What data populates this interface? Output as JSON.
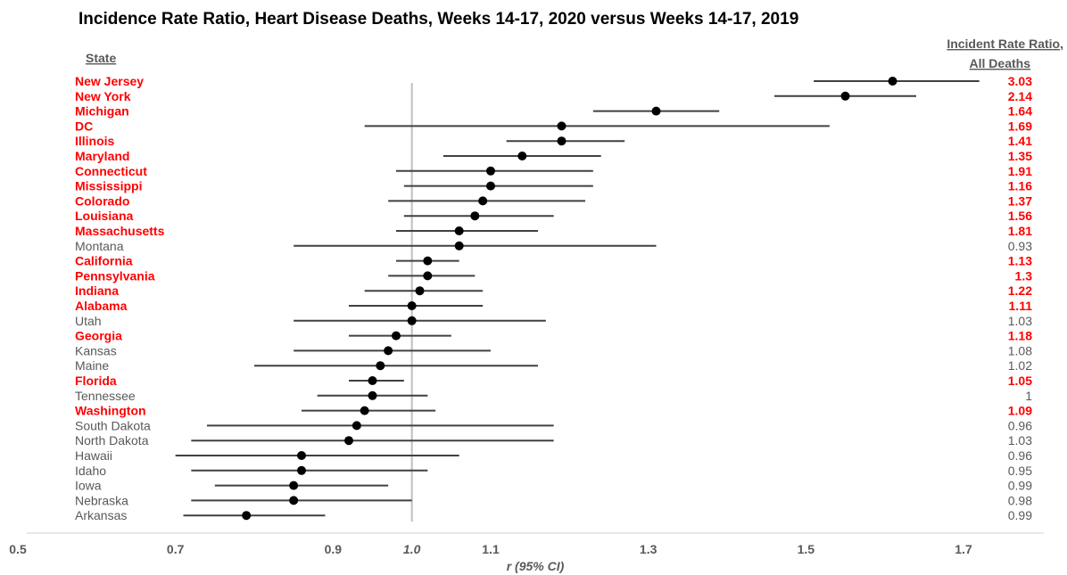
{
  "chart_data": {
    "type": "forest",
    "title": "Incidence Rate Ratio, Heart Disease Deaths, Weeks 14-17, 2020 versus Weeks 14-17, 2019",
    "left_header": "State",
    "right_header_line1": "Incident Rate Ratio,",
    "right_header_line2": "All Deaths",
    "xlabel": "r (95% CI)",
    "xlim": [
      0.5,
      1.8
    ],
    "xticks": [
      "0.5",
      "0.7",
      "0.9",
      "1.0",
      "1.1",
      "1.3",
      "1.5",
      "1.7"
    ],
    "reference_line": 1.0,
    "colors": {
      "significant": "#ff0000",
      "normal": "#595959",
      "ci": "#404040",
      "point": "#000000",
      "ref": "#bfbfbf",
      "axis": "#d0d0d0"
    },
    "rows": [
      {
        "state": "New Jersey",
        "estimate": 1.61,
        "lower": 1.51,
        "upper": 1.72,
        "irr_all": "3.03",
        "significant": true
      },
      {
        "state": "New York",
        "estimate": 1.55,
        "lower": 1.46,
        "upper": 1.64,
        "irr_all": "2.14",
        "significant": true
      },
      {
        "state": "Michigan",
        "estimate": 1.31,
        "lower": 1.23,
        "upper": 1.39,
        "irr_all": "1.64",
        "significant": true
      },
      {
        "state": "DC",
        "estimate": 1.19,
        "lower": 0.94,
        "upper": 1.53,
        "irr_all": "1.69",
        "significant": true
      },
      {
        "state": "Illinois",
        "estimate": 1.19,
        "lower": 1.12,
        "upper": 1.27,
        "irr_all": "1.41",
        "significant": true
      },
      {
        "state": "Maryland",
        "estimate": 1.14,
        "lower": 1.04,
        "upper": 1.24,
        "irr_all": "1.35",
        "significant": true
      },
      {
        "state": "Connecticut",
        "estimate": 1.1,
        "lower": 0.98,
        "upper": 1.23,
        "irr_all": "1.91",
        "significant": true
      },
      {
        "state": "Mississippi",
        "estimate": 1.1,
        "lower": 0.99,
        "upper": 1.23,
        "irr_all": "1.16",
        "significant": true
      },
      {
        "state": "Colorado",
        "estimate": 1.09,
        "lower": 0.97,
        "upper": 1.22,
        "irr_all": "1.37",
        "significant": true
      },
      {
        "state": "Louisiana",
        "estimate": 1.08,
        "lower": 0.99,
        "upper": 1.18,
        "irr_all": "1.56",
        "significant": true
      },
      {
        "state": "Massachusetts",
        "estimate": 1.06,
        "lower": 0.98,
        "upper": 1.16,
        "irr_all": "1.81",
        "significant": true
      },
      {
        "state": "Montana",
        "estimate": 1.06,
        "lower": 0.85,
        "upper": 1.31,
        "irr_all": "0.93",
        "significant": false
      },
      {
        "state": "California",
        "estimate": 1.02,
        "lower": 0.98,
        "upper": 1.06,
        "irr_all": "1.13",
        "significant": true
      },
      {
        "state": "Pennsylvania",
        "estimate": 1.02,
        "lower": 0.97,
        "upper": 1.08,
        "irr_all": "1.3",
        "significant": true
      },
      {
        "state": "Indiana",
        "estimate": 1.01,
        "lower": 0.94,
        "upper": 1.09,
        "irr_all": "1.22",
        "significant": true
      },
      {
        "state": "Alabama",
        "estimate": 1.0,
        "lower": 0.92,
        "upper": 1.09,
        "irr_all": "1.11",
        "significant": true
      },
      {
        "state": "Utah",
        "estimate": 1.0,
        "lower": 0.85,
        "upper": 1.17,
        "irr_all": "1.03",
        "significant": false
      },
      {
        "state": "Georgia",
        "estimate": 0.98,
        "lower": 0.92,
        "upper": 1.05,
        "irr_all": "1.18",
        "significant": true
      },
      {
        "state": "Kansas",
        "estimate": 0.97,
        "lower": 0.85,
        "upper": 1.1,
        "irr_all": "1.08",
        "significant": false
      },
      {
        "state": "Maine",
        "estimate": 0.96,
        "lower": 0.8,
        "upper": 1.16,
        "irr_all": "1.02",
        "significant": false
      },
      {
        "state": "Florida",
        "estimate": 0.95,
        "lower": 0.92,
        "upper": 0.99,
        "irr_all": "1.05",
        "significant": true
      },
      {
        "state": "Tennessee",
        "estimate": 0.95,
        "lower": 0.88,
        "upper": 1.02,
        "irr_all": "1",
        "significant": false
      },
      {
        "state": "Washington",
        "estimate": 0.94,
        "lower": 0.86,
        "upper": 1.03,
        "irr_all": "1.09",
        "significant": true
      },
      {
        "state": "South Dakota",
        "estimate": 0.93,
        "lower": 0.74,
        "upper": 1.18,
        "irr_all": "0.96",
        "significant": false
      },
      {
        "state": "North Dakota",
        "estimate": 0.92,
        "lower": 0.72,
        "upper": 1.18,
        "irr_all": "1.03",
        "significant": false
      },
      {
        "state": "Hawaii",
        "estimate": 0.86,
        "lower": 0.7,
        "upper": 1.06,
        "irr_all": "0.96",
        "significant": false
      },
      {
        "state": "Idaho",
        "estimate": 0.86,
        "lower": 0.72,
        "upper": 1.02,
        "irr_all": "0.95",
        "significant": false
      },
      {
        "state": "Iowa",
        "estimate": 0.85,
        "lower": 0.75,
        "upper": 0.97,
        "irr_all": "0.99",
        "significant": false
      },
      {
        "state": "Nebraska",
        "estimate": 0.85,
        "lower": 0.72,
        "upper": 1.0,
        "irr_all": "0.98",
        "significant": false
      },
      {
        "state": "Arkansas",
        "estimate": 0.79,
        "lower": 0.71,
        "upper": 0.89,
        "irr_all": "0.99",
        "significant": false
      }
    ]
  }
}
